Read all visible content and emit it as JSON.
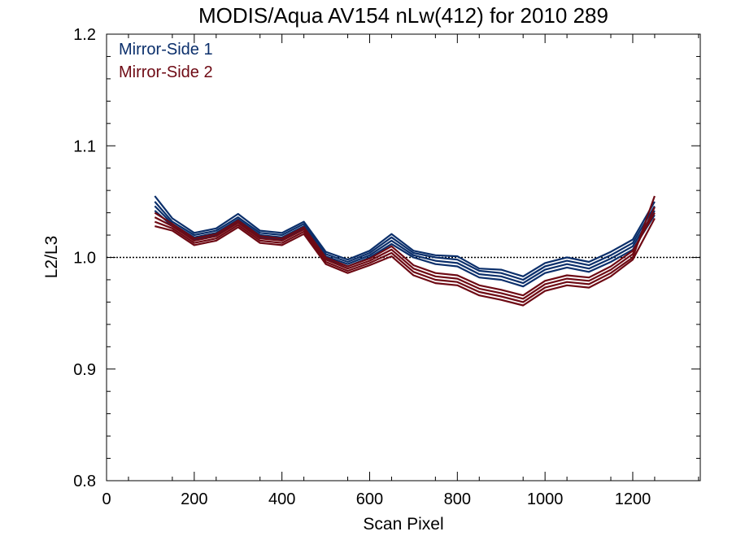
{
  "chart_data": {
    "type": "line",
    "title": "MODIS/Aqua AV154 nLw(412) for 2010 289",
    "xlabel": "Scan Pixel",
    "ylabel": "L2/L3",
    "xlim": [
      0,
      1354
    ],
    "ylim": [
      0.8,
      1.2
    ],
    "xticks": [
      0,
      200,
      400,
      600,
      800,
      1000,
      1200
    ],
    "xtick_labels": [
      "0",
      "200",
      "400",
      "600",
      "800",
      "1000",
      "1200"
    ],
    "yticks": [
      0.8,
      0.9,
      1.0,
      1.1,
      1.2
    ],
    "ytick_labels": [
      "0.8",
      "0.9",
      "1.0",
      "1.1",
      "1.2"
    ],
    "reference_line": 1.0,
    "legend_position": "top-left",
    "colors": {
      "ms1": "#0b2f6b",
      "ms2": "#6e0a14"
    },
    "x": [
      110,
      150,
      200,
      250,
      300,
      350,
      400,
      450,
      500,
      550,
      600,
      650,
      700,
      750,
      800,
      850,
      900,
      950,
      1000,
      1050,
      1100,
      1150,
      1200,
      1250
    ],
    "series": [
      {
        "name": "Mirror-Side 1",
        "color": "#0b2f6b",
        "lines": [
          [
            1.055,
            1.035,
            1.022,
            1.026,
            1.039,
            1.024,
            1.022,
            1.032,
            1.005,
            0.998,
            1.006,
            1.021,
            1.006,
            1.002,
            1.001,
            0.99,
            0.989,
            0.983,
            0.995,
            1.0,
            0.996,
            1.005,
            1.016,
            1.05
          ],
          [
            1.05,
            1.032,
            1.02,
            1.024,
            1.036,
            1.022,
            1.02,
            1.03,
            1.003,
            0.996,
            1.004,
            1.018,
            1.004,
            1.0,
            0.998,
            0.988,
            0.986,
            0.98,
            0.992,
            0.997,
            0.993,
            1.002,
            1.013,
            1.046
          ],
          [
            1.046,
            1.03,
            1.018,
            1.022,
            1.034,
            1.02,
            1.018,
            1.028,
            1.001,
            0.994,
            1.002,
            1.015,
            1.002,
            0.997,
            0.995,
            0.985,
            0.983,
            0.977,
            0.989,
            0.994,
            0.99,
            0.999,
            1.01,
            1.042
          ],
          [
            1.042,
            1.028,
            1.016,
            1.02,
            1.032,
            1.018,
            1.016,
            1.026,
            0.999,
            0.992,
            1.0,
            1.012,
            1.0,
            0.994,
            0.992,
            0.982,
            0.98,
            0.974,
            0.986,
            0.991,
            0.987,
            0.996,
            1.007,
            1.038
          ]
        ]
      },
      {
        "name": "Mirror-Side 2",
        "color": "#6e0a14",
        "lines": [
          [
            1.04,
            1.03,
            1.017,
            1.021,
            1.033,
            1.019,
            1.017,
            1.027,
            1.0,
            0.992,
            0.999,
            1.01,
            0.993,
            0.986,
            0.984,
            0.975,
            0.971,
            0.966,
            0.979,
            0.984,
            0.982,
            0.992,
            1.006,
            1.04
          ],
          [
            1.036,
            1.028,
            1.015,
            1.019,
            1.031,
            1.017,
            1.015,
            1.025,
            0.998,
            0.99,
            0.997,
            1.007,
            0.99,
            0.983,
            0.981,
            0.972,
            0.968,
            0.963,
            0.976,
            0.981,
            0.979,
            0.989,
            1.003,
            1.045
          ],
          [
            1.032,
            1.026,
            1.013,
            1.017,
            1.029,
            1.015,
            1.013,
            1.023,
            0.996,
            0.988,
            0.995,
            1.004,
            0.987,
            0.98,
            0.978,
            0.969,
            0.965,
            0.96,
            0.973,
            0.978,
            0.976,
            0.986,
            1.0,
            1.055
          ],
          [
            1.028,
            1.024,
            1.011,
            1.015,
            1.027,
            1.013,
            1.011,
            1.021,
            0.994,
            0.986,
            0.993,
            1.001,
            0.984,
            0.977,
            0.975,
            0.966,
            0.962,
            0.957,
            0.97,
            0.975,
            0.973,
            0.983,
            0.998,
            1.035
          ]
        ]
      }
    ]
  }
}
